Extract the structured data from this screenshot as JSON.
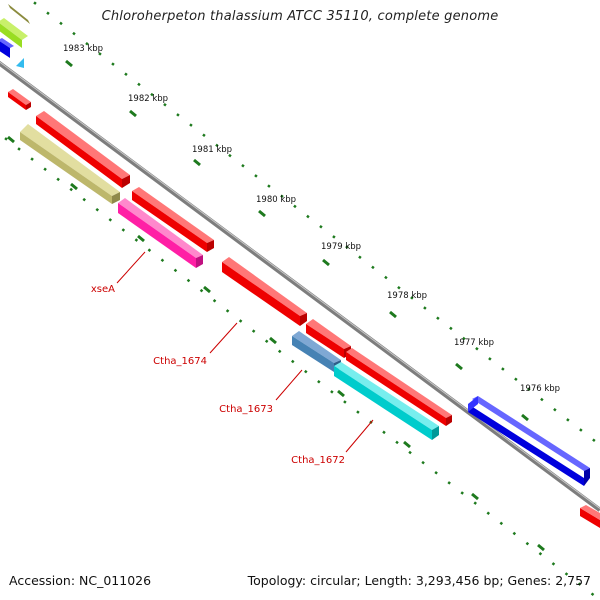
{
  "map": {
    "title": "Chloroherpeton thalassium ATCC 35110, complete genome",
    "accession": "Accession: NC_011026",
    "summary": "Topology: circular; Length: 3,293,456 bp; Genes: 2,757"
  },
  "colors": {
    "backbone": "#8c8c8c",
    "tick": "#1e7a1e",
    "cds_red": "#ff0000",
    "cds_blue": "#0000ee",
    "cds_olive": "#bdb76b",
    "cds_pink": "#ff1fa5",
    "cds_cyan": "#00cccc",
    "cds_steel": "#4682b4",
    "cds_lime": "#99dd22",
    "cds_sky": "#33bbee",
    "label": "#cc0000"
  },
  "scale": {
    "unit": "kbp",
    "ticks": [
      "1983 kbp",
      "1982 kbp",
      "1981 kbp",
      "1980 kbp",
      "1979 kbp",
      "1978 kbp",
      "1977 kbp",
      "1976 kbp"
    ]
  },
  "gene_labels": [
    "xseA",
    "Ctha_1674",
    "Ctha_1673",
    "Ctha_1672"
  ]
}
